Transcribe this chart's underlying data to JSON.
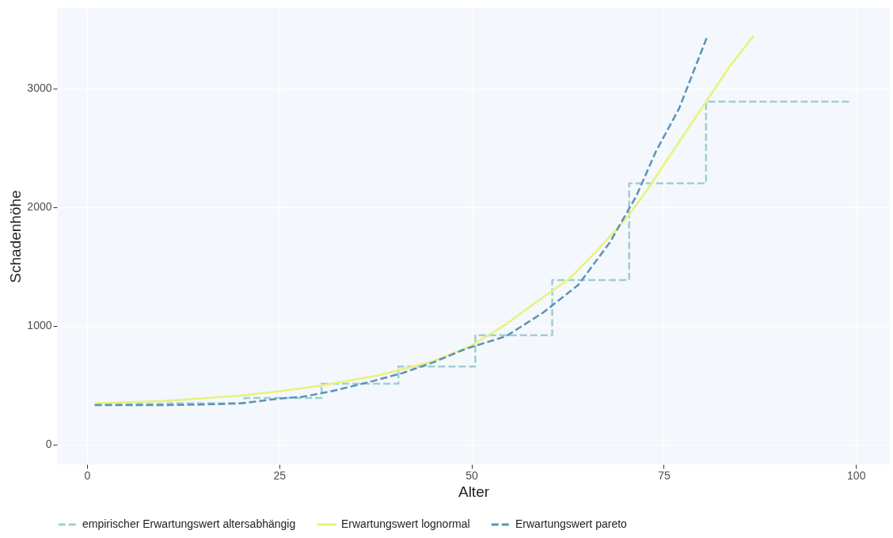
{
  "chart_data": {
    "type": "line",
    "xlabel": "Alter",
    "ylabel": "Schadenhöhe",
    "xlim": [
      -3.9,
      104.4
    ],
    "ylim": [
      -170,
      3680
    ],
    "xticks": [
      0,
      25,
      50,
      75,
      100
    ],
    "yticks": [
      0,
      1000,
      2000,
      3000
    ],
    "grid": true,
    "legend": "bottom",
    "series": [
      {
        "name": "empirischer Erwartungswert altersabhängig",
        "type": "step",
        "line_style": "dashed",
        "color": "#9ecfcf",
        "x": [
          1,
          10.5,
          20.5,
          30.5,
          40.5,
          50.5,
          60.5,
          70.5,
          80.5,
          99.5
        ],
        "values": [
          340,
          345,
          390,
          510,
          655,
          920,
          1385,
          2200,
          2890,
          2890
        ]
      },
      {
        "name": "Erwartungswert lognormal",
        "type": "line",
        "line_style": "solid",
        "color": "#e8f27a",
        "x": [
          1,
          10,
          20,
          25,
          30,
          37.5,
          45,
          50,
          54.5,
          58,
          62.7,
          66,
          70.2,
          73,
          76.2,
          80.7,
          83.5,
          86.7
        ],
        "values": [
          345,
          365,
          410,
          447,
          490,
          575,
          700,
          832,
          1012,
          1180,
          1395,
          1610,
          1909,
          2160,
          2472,
          2908,
          3180,
          3447
        ]
      },
      {
        "name": "Erwartungswert pareto",
        "type": "line",
        "line_style": "dashed",
        "color": "#5b93b5",
        "x": [
          1,
          10,
          15,
          20,
          25,
          28,
          32,
          37,
          41,
          45,
          49.3,
          54.5,
          59.4,
          63.9,
          68,
          71.4,
          74,
          77,
          80.7
        ],
        "values": [
          330,
          330,
          335,
          345,
          385,
          400,
          450,
          530,
          600,
          690,
          806,
          911,
          1114,
          1345,
          1703,
          2089,
          2472,
          2832,
          3447
        ]
      }
    ]
  }
}
